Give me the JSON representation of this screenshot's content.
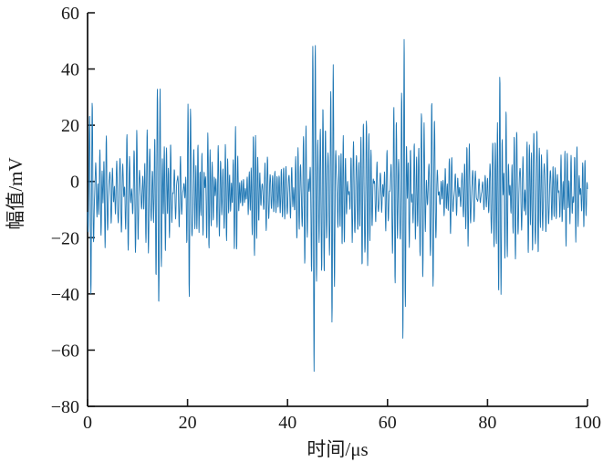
{
  "figure": {
    "background": "#ffffff"
  },
  "chart_data": {
    "type": "line",
    "title": "",
    "xlabel": "时间/μs",
    "ylabel": "幅值/mV",
    "xlim": [
      0,
      100
    ],
    "ylim": [
      -80,
      60
    ],
    "xticks": [
      0,
      20,
      40,
      60,
      80,
      100
    ],
    "yticks": [
      -80,
      -60,
      -40,
      -20,
      0,
      20,
      40,
      60
    ],
    "grid": false,
    "legend_position": "none",
    "line_color": "#1f77b4",
    "axis_color": "#1a1a1a",
    "signal": {
      "description": "Dense noisy ultrasonic-style waveform over 0-100 microseconds with periodic envelope modulation and one strong echo burst near 45 microseconds",
      "observed": {
        "mean_mv": -4,
        "noise_band_mv": [
          -25,
          20
        ],
        "typical_peak_mv": 33,
        "typical_trough_mv": -40,
        "envelope_period_us": 6.8,
        "burst_time_us": 45.3,
        "burst_max_mv": 54,
        "burst_min_mv": -66
      },
      "synthesis": {
        "seed": 20240613,
        "n_points": 2400,
        "n_sinusoids": 30,
        "freq_range": [
          1.4,
          2.6
        ],
        "amp_base": 2.5,
        "mean": -4,
        "env_period": 6.8,
        "env_depth": 0.3,
        "env_phase": 0.7,
        "env2_period": 17,
        "env2_depth": 0.15,
        "env2_phase": 2.1,
        "burst_center": 45.3,
        "burst_sigma": 0.55,
        "burst_freq": 2.0,
        "burst_amp": 62,
        "burst_boost": 0.5,
        "burst_boost_sigma": 2.2
      }
    }
  }
}
